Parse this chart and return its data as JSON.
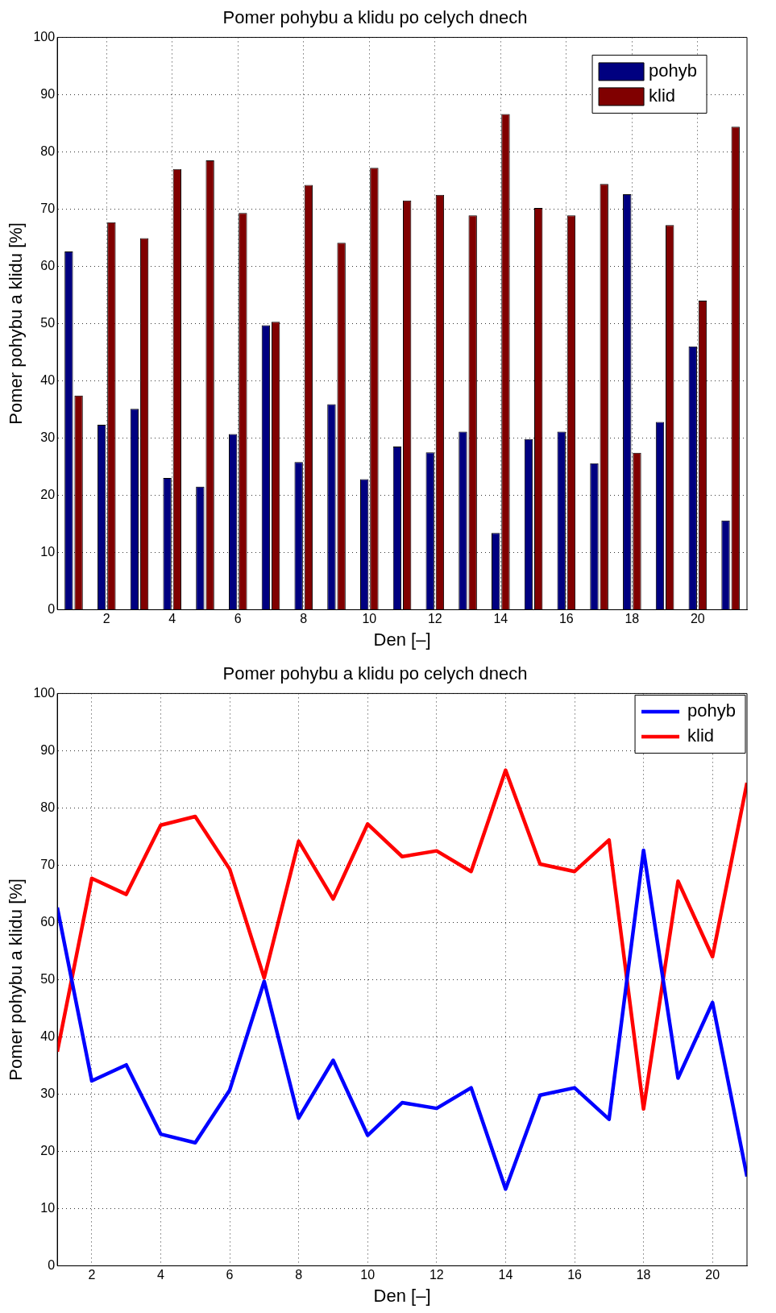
{
  "chart_data": [
    {
      "type": "bar",
      "title": "Pomer pohybu a klidu po celych dnech",
      "xlabel": "Den [–]",
      "ylabel": "Pomer pohybu a klidu [%]",
      "categories": [
        null,
        "2",
        null,
        "4",
        null,
        "6",
        null,
        "8",
        null,
        "10",
        null,
        "12",
        null,
        "14",
        null,
        "16",
        null,
        "18",
        null,
        "20",
        null
      ],
      "series": [
        {
          "name": "pohyb",
          "color": "#000080",
          "values": [
            62.6,
            32.3,
            35.1,
            23.0,
            21.5,
            30.7,
            49.7,
            25.8,
            35.9,
            22.8,
            28.5,
            27.5,
            31.1,
            13.4,
            29.8,
            31.1,
            25.6,
            72.6,
            32.8,
            46.0,
            15.6
          ]
        },
        {
          "name": "klid",
          "color": "#800000",
          "values": [
            37.4,
            67.7,
            64.9,
            77.0,
            78.5,
            69.3,
            50.3,
            74.2,
            64.1,
            77.2,
            71.5,
            72.5,
            68.9,
            86.6,
            70.2,
            68.9,
            74.4,
            27.4,
            67.2,
            54.0,
            84.4
          ]
        }
      ],
      "ylim": [
        0,
        100
      ],
      "yticks": [
        0,
        10,
        20,
        30,
        40,
        50,
        60,
        70,
        80,
        90,
        100
      ],
      "grid": true,
      "legend": "top right"
    },
    {
      "type": "line",
      "title": "Pomer pohybu a klidu po celych dnech",
      "xlabel": "Den [–]",
      "ylabel": "Pomer pohybu a klidu [%]",
      "x": [
        1,
        2,
        3,
        4,
        5,
        6,
        7,
        8,
        9,
        10,
        11,
        12,
        13,
        14,
        15,
        16,
        17,
        18,
        19,
        20,
        21
      ],
      "series": [
        {
          "name": "pohyb",
          "color": "#0000ff",
          "values": [
            62.6,
            32.3,
            35.1,
            23.0,
            21.5,
            30.7,
            49.7,
            25.8,
            35.9,
            22.8,
            28.5,
            27.5,
            31.1,
            13.4,
            29.8,
            31.1,
            25.6,
            72.6,
            32.8,
            46.0,
            15.6
          ]
        },
        {
          "name": "klid",
          "color": "#ff0000",
          "values": [
            37.4,
            67.7,
            64.9,
            77.0,
            78.5,
            69.3,
            50.3,
            74.2,
            64.1,
            77.2,
            71.5,
            72.5,
            68.9,
            86.6,
            70.2,
            68.9,
            74.4,
            27.4,
            67.2,
            54.0,
            84.4
          ]
        }
      ],
      "xlim": [
        1,
        21
      ],
      "xticks": [
        2,
        4,
        6,
        8,
        10,
        12,
        14,
        16,
        18,
        20
      ],
      "ylim": [
        0,
        100
      ],
      "yticks": [
        0,
        10,
        20,
        30,
        40,
        50,
        60,
        70,
        80,
        90,
        100
      ],
      "grid": true,
      "legend": "top right",
      "line_style": "solid",
      "marker": "none"
    }
  ]
}
